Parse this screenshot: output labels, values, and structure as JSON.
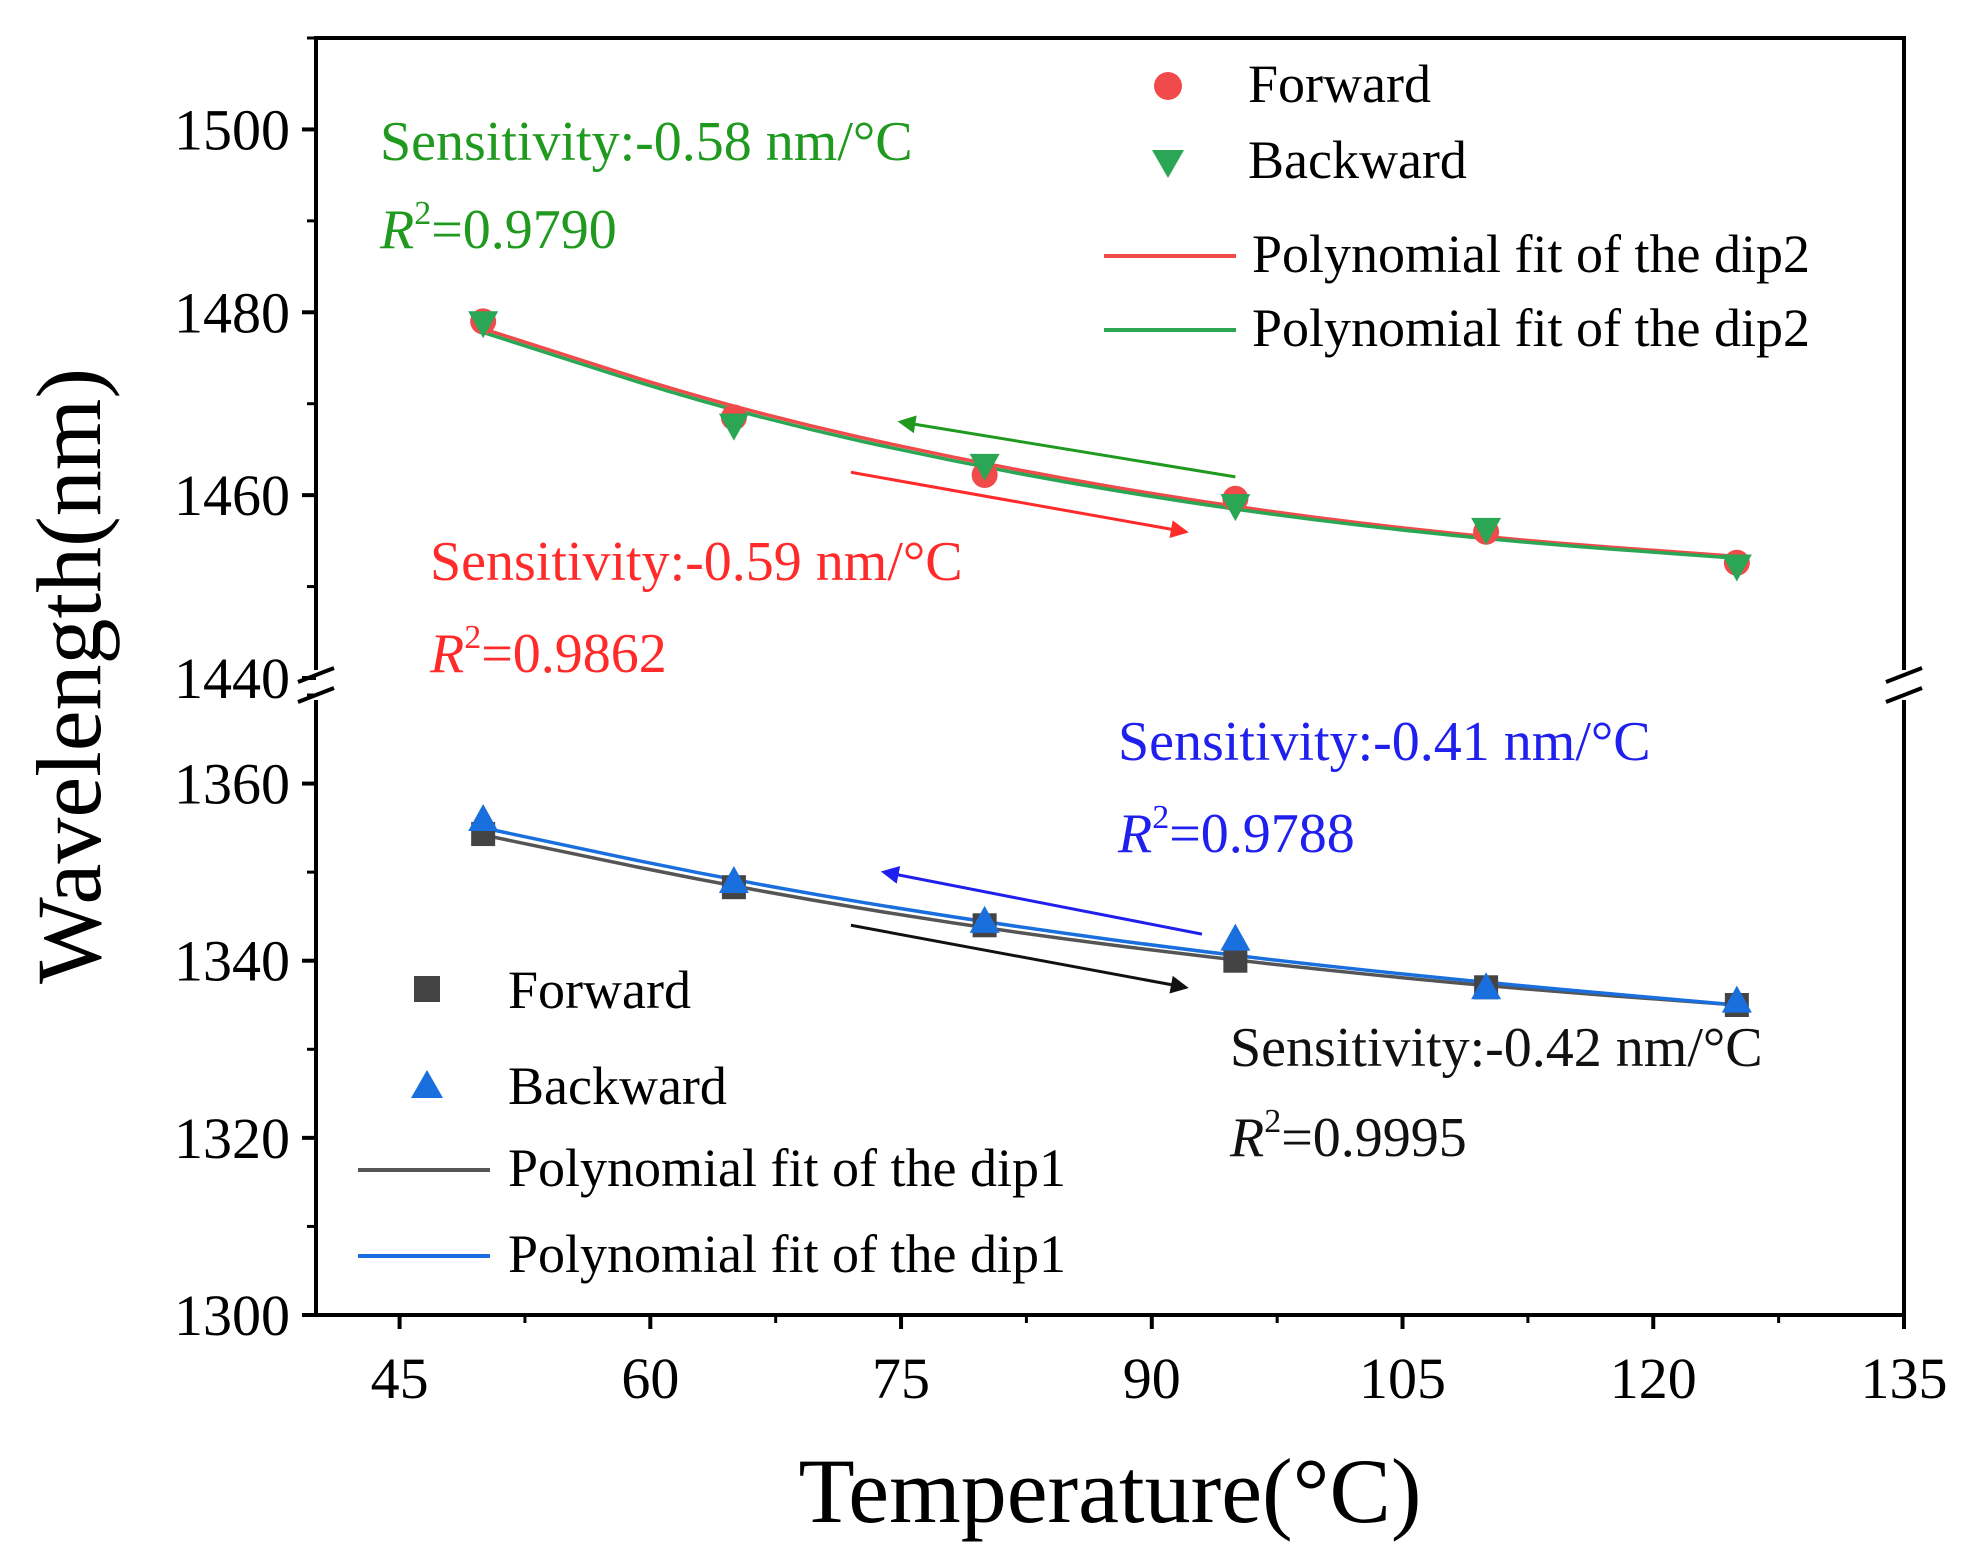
{
  "chart_data": {
    "type": "scatter",
    "xlabel": "Temperature(°C)",
    "ylabel": "Wavelength(nm)",
    "xlim": [
      40,
      135
    ],
    "xticks": [
      45,
      60,
      75,
      90,
      105,
      120,
      135
    ],
    "ylim_upper": [
      1440,
      1510
    ],
    "yticks_upper": [
      1440,
      1460,
      1480,
      1500
    ],
    "ylim_lower": [
      1300,
      1370
    ],
    "yticks_lower": [
      1300,
      1320,
      1340,
      1360
    ],
    "axis_break": "between 1370 and 1440",
    "series": [
      {
        "name": "Forward",
        "group": "dip2",
        "marker": "circle",
        "color": "#f04a4a",
        "x": [
          50,
          65,
          80,
          95,
          110,
          125
        ],
        "y": [
          1479.0,
          1468.5,
          1462.2,
          1459.6,
          1456.0,
          1452.6
        ]
      },
      {
        "name": "Backward",
        "group": "dip2",
        "marker": "triangle-down",
        "color": "#2aa655",
        "x": [
          50,
          65,
          80,
          95,
          110,
          125
        ],
        "y": [
          1478.8,
          1467.6,
          1463.2,
          1458.8,
          1456.2,
          1452.2
        ]
      },
      {
        "name": "Forward",
        "group": "dip1",
        "marker": "square",
        "color": "#444444",
        "x": [
          50,
          65,
          80,
          95,
          110,
          125
        ],
        "y": [
          1354.3,
          1348.3,
          1344.0,
          1340.0,
          1337.0,
          1335.0
        ]
      },
      {
        "name": "Backward",
        "group": "dip1",
        "marker": "triangle-up",
        "color": "#1a6fde",
        "x": [
          50,
          65,
          80,
          95,
          110,
          125
        ],
        "y": [
          1356.0,
          1349.0,
          1344.5,
          1342.5,
          1337.0,
          1335.5
        ]
      }
    ],
    "fits": [
      {
        "name": "Polynomial fit of the dip2",
        "color": "#f04a4a",
        "x": [
          50,
          65,
          80,
          95,
          110,
          125
        ],
        "y": [
          1478.2,
          1469.4,
          1463.3,
          1458.6,
          1455.3,
          1453.3
        ]
      },
      {
        "name": "Polynomial fit of the dip2",
        "color": "#2aa655",
        "x": [
          50,
          65,
          80,
          95,
          110,
          125
        ],
        "y": [
          1477.8,
          1469.0,
          1462.9,
          1458.3,
          1455.1,
          1453.1
        ]
      },
      {
        "name": "Polynomial fit of the dip1",
        "color": "#555555",
        "x": [
          50,
          65,
          80,
          95,
          110,
          125
        ],
        "y": [
          1354.2,
          1348.3,
          1343.6,
          1340.0,
          1337.1,
          1335.0
        ]
      },
      {
        "name": "Polynomial fit of the dip1",
        "color": "#1a6fde",
        "x": [
          50,
          65,
          80,
          95,
          110,
          125
        ],
        "y": [
          1355.0,
          1349.0,
          1344.3,
          1340.5,
          1337.5,
          1335.0
        ]
      }
    ],
    "legend_dip2": {
      "position": "top-right",
      "items": [
        {
          "label": "Forward",
          "kind": "circle",
          "color": "#f04a4a"
        },
        {
          "label": "Backward",
          "kind": "triangle-down",
          "color": "#2aa655"
        },
        {
          "label": "Polynomial fit of the dip2",
          "kind": "line",
          "color": "#f04a4a"
        },
        {
          "label": "Polynomial fit of the dip2",
          "kind": "line",
          "color": "#2aa655"
        }
      ]
    },
    "legend_dip1": {
      "position": "bottom-left",
      "items": [
        {
          "label": "Forward",
          "kind": "square",
          "color": "#444444"
        },
        {
          "label": "Backward",
          "kind": "triangle-up",
          "color": "#1a6fde"
        },
        {
          "label": "Polynomial fit of the dip1",
          "kind": "line",
          "color": "#555555"
        },
        {
          "label": "Polynomial fit of the dip1",
          "kind": "line",
          "color": "#1a6fde"
        }
      ]
    },
    "annotations": [
      {
        "id": "green",
        "color": "#1f9a1f",
        "sensitivity": "Sensitivity:-0.58 nm/°C",
        "r2_symbol": "R",
        "r2_exp": "2",
        "r2_value": "=0.9790"
      },
      {
        "id": "red",
        "color": "#ff2a2a",
        "sensitivity": "Sensitivity:-0.59 nm/°C",
        "r2_symbol": "R",
        "r2_exp": "2",
        "r2_value": "=0.9862"
      },
      {
        "id": "blue",
        "color": "#2020ee",
        "sensitivity": "Sensitivity:-0.41 nm/°C",
        "r2_symbol": "R",
        "r2_exp": "2",
        "r2_value": "=0.9788"
      },
      {
        "id": "black",
        "color": "#111111",
        "sensitivity": "Sensitivity:-0.42 nm/°C",
        "r2_symbol": "R",
        "r2_exp": "2",
        "r2_value": "=0.9995"
      }
    ],
    "direction_arrows": [
      {
        "color": "#1f9a1f",
        "direction": "heating-to-cooling",
        "from": [
          95,
          1462
        ],
        "to": [
          75,
          1468
        ]
      },
      {
        "color": "#ff2a2a",
        "direction": "cooling-to-heating",
        "from": [
          72,
          1462.5
        ],
        "to": [
          92,
          1456
        ]
      },
      {
        "color": "#2020ee",
        "direction": "heating-to-cooling",
        "from": [
          93,
          1343
        ],
        "to": [
          74,
          1350
        ]
      },
      {
        "color": "#111111",
        "direction": "cooling-to-heating",
        "from": [
          72,
          1344
        ],
        "to": [
          92,
          1337
        ]
      }
    ]
  }
}
